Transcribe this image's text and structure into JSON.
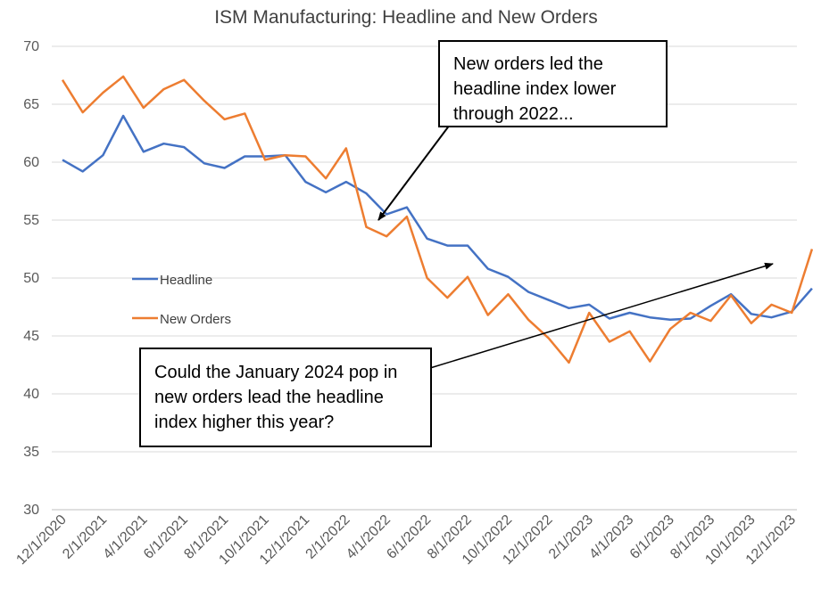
{
  "chart_data": {
    "type": "line",
    "title": "ISM Manufacturing: Headline and New Orders",
    "xlabel": "",
    "ylabel": "",
    "ylim": [
      30,
      70
    ],
    "yticks": [
      30,
      35,
      40,
      45,
      50,
      55,
      60,
      65,
      70
    ],
    "grid": true,
    "legend_position": "middle-left",
    "x_tick_labels": [
      "12/1/2020",
      "2/1/2021",
      "4/1/2021",
      "6/1/2021",
      "8/1/2021",
      "10/1/2021",
      "12/1/2021",
      "2/1/2022",
      "4/1/2022",
      "6/1/2022",
      "8/1/2022",
      "10/1/2022",
      "12/1/2022",
      "2/1/2023",
      "4/1/2023",
      "6/1/2023",
      "8/1/2023",
      "10/1/2023",
      "12/1/2023"
    ],
    "x": [
      "12/1/2020",
      "1/1/2021",
      "2/1/2021",
      "3/1/2021",
      "4/1/2021",
      "5/1/2021",
      "6/1/2021",
      "7/1/2021",
      "8/1/2021",
      "9/1/2021",
      "10/1/2021",
      "11/1/2021",
      "12/1/2021",
      "1/1/2022",
      "2/1/2022",
      "3/1/2022",
      "4/1/2022",
      "5/1/2022",
      "6/1/2022",
      "7/1/2022",
      "8/1/2022",
      "9/1/2022",
      "10/1/2022",
      "11/1/2022",
      "12/1/2022",
      "1/1/2023",
      "2/1/2023",
      "3/1/2023",
      "4/1/2023",
      "5/1/2023",
      "6/1/2023",
      "7/1/2023",
      "8/1/2023",
      "9/1/2023",
      "10/1/2023",
      "11/1/2023",
      "12/1/2023",
      "1/1/2024"
    ],
    "series": [
      {
        "name": "Headline",
        "color": "#4472C4",
        "values": [
          60.2,
          59.2,
          60.6,
          64.0,
          60.9,
          61.6,
          61.3,
          59.9,
          59.5,
          60.5,
          60.5,
          60.6,
          58.3,
          57.4,
          58.3,
          57.3,
          55.5,
          56.1,
          53.4,
          52.8,
          52.8,
          50.8,
          50.1,
          48.8,
          48.1,
          47.4,
          47.7,
          46.5,
          47.0,
          46.6,
          46.4,
          46.5,
          47.6,
          48.6,
          46.9,
          46.6,
          47.1,
          49.1
        ]
      },
      {
        "name": "New Orders",
        "color": "#ED7D31",
        "values": [
          67.1,
          64.3,
          66.0,
          67.4,
          64.7,
          66.3,
          67.1,
          65.3,
          63.7,
          64.2,
          60.2,
          60.6,
          60.5,
          58.6,
          61.2,
          54.4,
          53.6,
          55.3,
          50.0,
          48.3,
          50.1,
          46.8,
          48.6,
          46.4,
          44.8,
          42.7,
          47.0,
          44.5,
          45.4,
          42.8,
          45.6,
          47.0,
          46.3,
          48.5,
          46.1,
          47.7,
          47.0,
          52.5
        ]
      }
    ],
    "annotations": [
      {
        "lines": [
          "New orders led the",
          "headline index lower",
          "through 2022..."
        ]
      },
      {
        "lines": [
          "Could the January 2024 pop in",
          "new orders lead the headline",
          "index higher this year?"
        ]
      }
    ]
  }
}
